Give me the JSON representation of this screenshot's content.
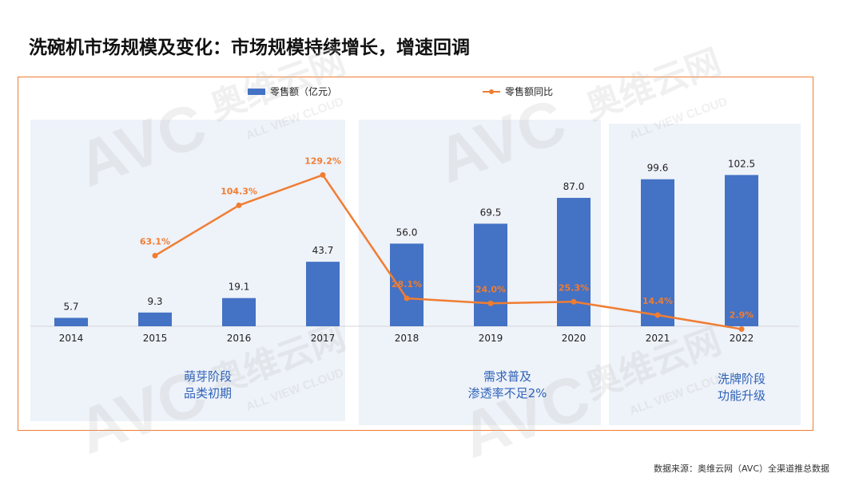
{
  "title": "洗碗机市场规模及变化：市场规模持续增长，增速回调",
  "legend": {
    "bar_label": "零售额（亿元）",
    "line_label": "零售额同比"
  },
  "phases": [
    {
      "line1": "萌芽阶段",
      "line2": "品类初期"
    },
    {
      "line1": "需求普及",
      "line2": "渗透率不足2%"
    },
    {
      "line1": "洗牌阶段",
      "line2": "功能升级"
    }
  ],
  "source": "数据来源：奥维云网（AVC）全渠道推总数据",
  "watermark": {
    "brand": "AVC",
    "name": "奥维云网",
    "tagline": "ALL VIEW CLOUD"
  },
  "colors": {
    "bar": "#4472c4",
    "line": "#f07d32",
    "panel": "#eef2f9",
    "frame": "#f07d32"
  },
  "chart_data": {
    "type": "bar",
    "categories": [
      "2014",
      "2015",
      "2016",
      "2017",
      "2018",
      "2019",
      "2020",
      "2021",
      "2022"
    ],
    "series": [
      {
        "name": "零售额（亿元）",
        "type": "bar",
        "values": [
          5.7,
          9.3,
          19.1,
          43.7,
          56.0,
          69.5,
          87.0,
          99.6,
          102.5
        ],
        "labels": [
          "5.7",
          "9.3",
          "19.1",
          "43.7",
          "56.0",
          "69.5",
          "87.0",
          "99.6",
          "102.5"
        ]
      },
      {
        "name": "零售额同比",
        "type": "line",
        "values": [
          null,
          63.1,
          104.3,
          129.2,
          28.1,
          24.0,
          25.3,
          14.4,
          2.9
        ],
        "labels": [
          "",
          "63.1%",
          "104.3%",
          "129.2%",
          "28.1%",
          "24.0%",
          "25.3%",
          "14.4%",
          "2.9%"
        ]
      }
    ],
    "legend": "top",
    "grid": false
  }
}
